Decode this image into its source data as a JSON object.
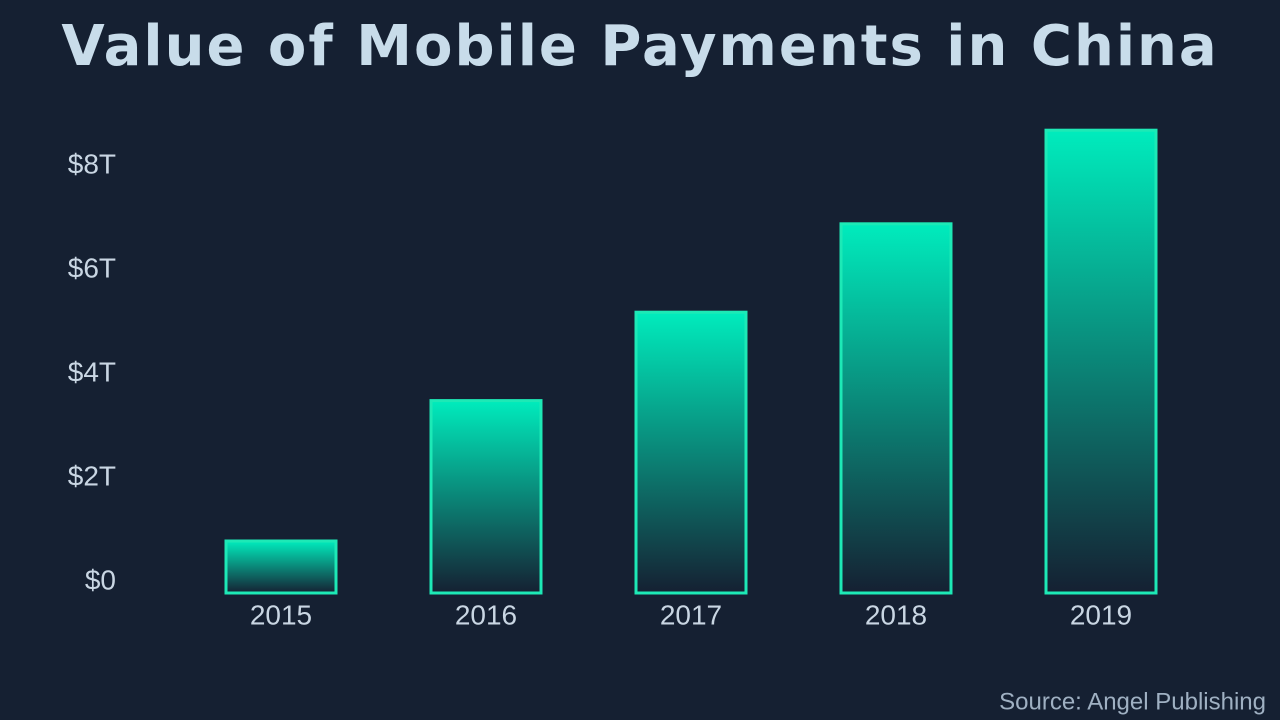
{
  "chart_data": {
    "type": "bar",
    "title": "Value of Mobile Payments in China",
    "categories": [
      "2015",
      "2016",
      "2017",
      "2018",
      "2019"
    ],
    "values": [
      1.0,
      3.7,
      5.4,
      7.1,
      8.9
    ],
    "color": "#1de9b6",
    "ylim": [
      0,
      9
    ],
    "yticks": [
      {
        "value": 0,
        "label": "$0"
      },
      {
        "value": 2,
        "label": "$2T"
      },
      {
        "value": 4,
        "label": "$4T"
      },
      {
        "value": 6,
        "label": "$6T"
      },
      {
        "value": 8,
        "label": "$8T"
      }
    ],
    "source": "Source: Angel Publishing"
  }
}
